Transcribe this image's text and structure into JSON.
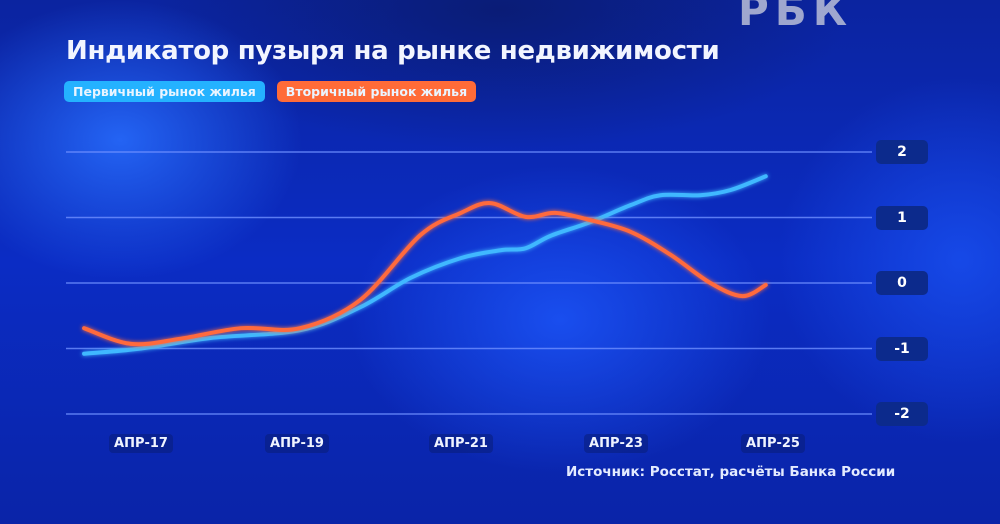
{
  "header": {
    "logo": "РБК",
    "title": "Индикатор пузыря на рынке недвижимости"
  },
  "legend": [
    {
      "label": "Первичный рынок жилья",
      "color": "#3fb8ff"
    },
    {
      "label": "Вторичный рынок жилья",
      "color": "#ff6a3d"
    }
  ],
  "footer": {
    "source": "Источник: Росстат, расчёты Банка России"
  },
  "chart_data": {
    "type": "line",
    "title": "Индикатор пузыря на рынке недвижимости",
    "xlabel": "",
    "ylabel": "",
    "x_tick_labels": [
      "АПР-17",
      "АПР-19",
      "АПР-21",
      "АПР-23",
      "АПР-25"
    ],
    "y_ticks": [
      2,
      1,
      0,
      -1,
      -2
    ],
    "ylim": [
      -2,
      2
    ],
    "xlim": [
      2016.5,
      2025.6
    ],
    "grid": true,
    "legend_position": "top-left",
    "series": [
      {
        "name": "Первичный рынок жилья",
        "color": "#3fb8ff",
        "x": [
          2016.52,
          2017.25,
          2018.14,
          2019.29,
          2020.06,
          2020.71,
          2021.35,
          2021.86,
          2022.18,
          2022.5,
          2023.01,
          2023.53,
          2023.91,
          2024.42,
          2024.81,
          2025.26
        ],
        "values": [
          -1.08,
          -1.0,
          -0.84,
          -0.72,
          -0.37,
          0.08,
          0.38,
          0.5,
          0.53,
          0.72,
          0.93,
          1.19,
          1.34,
          1.34,
          1.42,
          1.63
        ]
      },
      {
        "name": "Вторичный рынок жилья",
        "color": "#ff6a3d",
        "x": [
          2016.52,
          2017.12,
          2017.76,
          2018.53,
          2019.29,
          2020.06,
          2020.83,
          2021.35,
          2021.73,
          2022.18,
          2022.56,
          2023.01,
          2023.53,
          2024.04,
          2024.55,
          2024.96,
          2025.26
        ],
        "values": [
          -0.69,
          -0.93,
          -0.85,
          -0.69,
          -0.69,
          -0.26,
          0.73,
          1.07,
          1.22,
          1.01,
          1.07,
          0.96,
          0.78,
          0.43,
          0.0,
          -0.2,
          -0.03
        ]
      }
    ]
  }
}
